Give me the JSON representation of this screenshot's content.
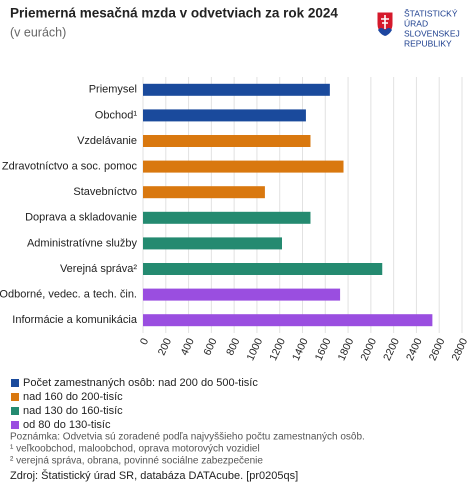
{
  "chart_data": {
    "type": "bar",
    "orientation": "horizontal",
    "title": "Priemerná mesačná mzda v odvetviach za rok 2024",
    "subtitle": "(v eurách)",
    "logo": [
      "ŠTATISTICKÝ",
      "ÚRAD",
      "SLOVENSKEJ",
      "REPUBLIKY"
    ],
    "categories": [
      "Priemysel",
      "Obchod¹",
      "Vzdelávanie",
      "Zdravotníctvo a soc. pomoc",
      "Stavebníctvo",
      "Doprava a skladovanie",
      "Administratívne služby",
      "Verejná správa²",
      "Odborné, vedec. a tech. čin.",
      "Informácie a komunikácia"
    ],
    "series": [
      {
        "name": "Počet zamestnaných osôb: nad 200 do 500-tisíc",
        "color": "#1a4a9c",
        "values": [
          1640,
          1430,
          null,
          null,
          null,
          null,
          null,
          null,
          null,
          null
        ]
      },
      {
        "name": "nad 160 do 200-tisíc",
        "color": "#d9780f",
        "values": [
          null,
          null,
          1470,
          1760,
          1070,
          null,
          null,
          null,
          null,
          null
        ]
      },
      {
        "name": "nad 130 do 160-tisíc",
        "color": "#248a70",
        "values": [
          null,
          null,
          null,
          null,
          null,
          1470,
          1220,
          2100,
          null,
          null
        ]
      },
      {
        "name": "od 80 do 130-tisíc",
        "color": "#9a4ee0",
        "values": [
          null,
          null,
          null,
          null,
          null,
          null,
          null,
          null,
          1730,
          2540
        ]
      }
    ],
    "xlim": [
      0,
      2800
    ],
    "xticks": [
      0,
      200,
      400,
      600,
      800,
      1000,
      1200,
      1400,
      1600,
      1800,
      2000,
      2200,
      2400,
      2600,
      2800
    ],
    "grid": true,
    "notes": [
      "Poznámka: Odvetvia sú zoradené podľa najvyššieho počtu zamestnaných osôb.",
      "¹ veľkoobchod, maloobchod, oprava motorových vozidiel",
      "² verejná správa, obrana, povinné sociálne zabezpečenie"
    ],
    "source": "Zdroj: Štatistický úrad SR, databáza DATAcube. [pr0205qs]"
  }
}
